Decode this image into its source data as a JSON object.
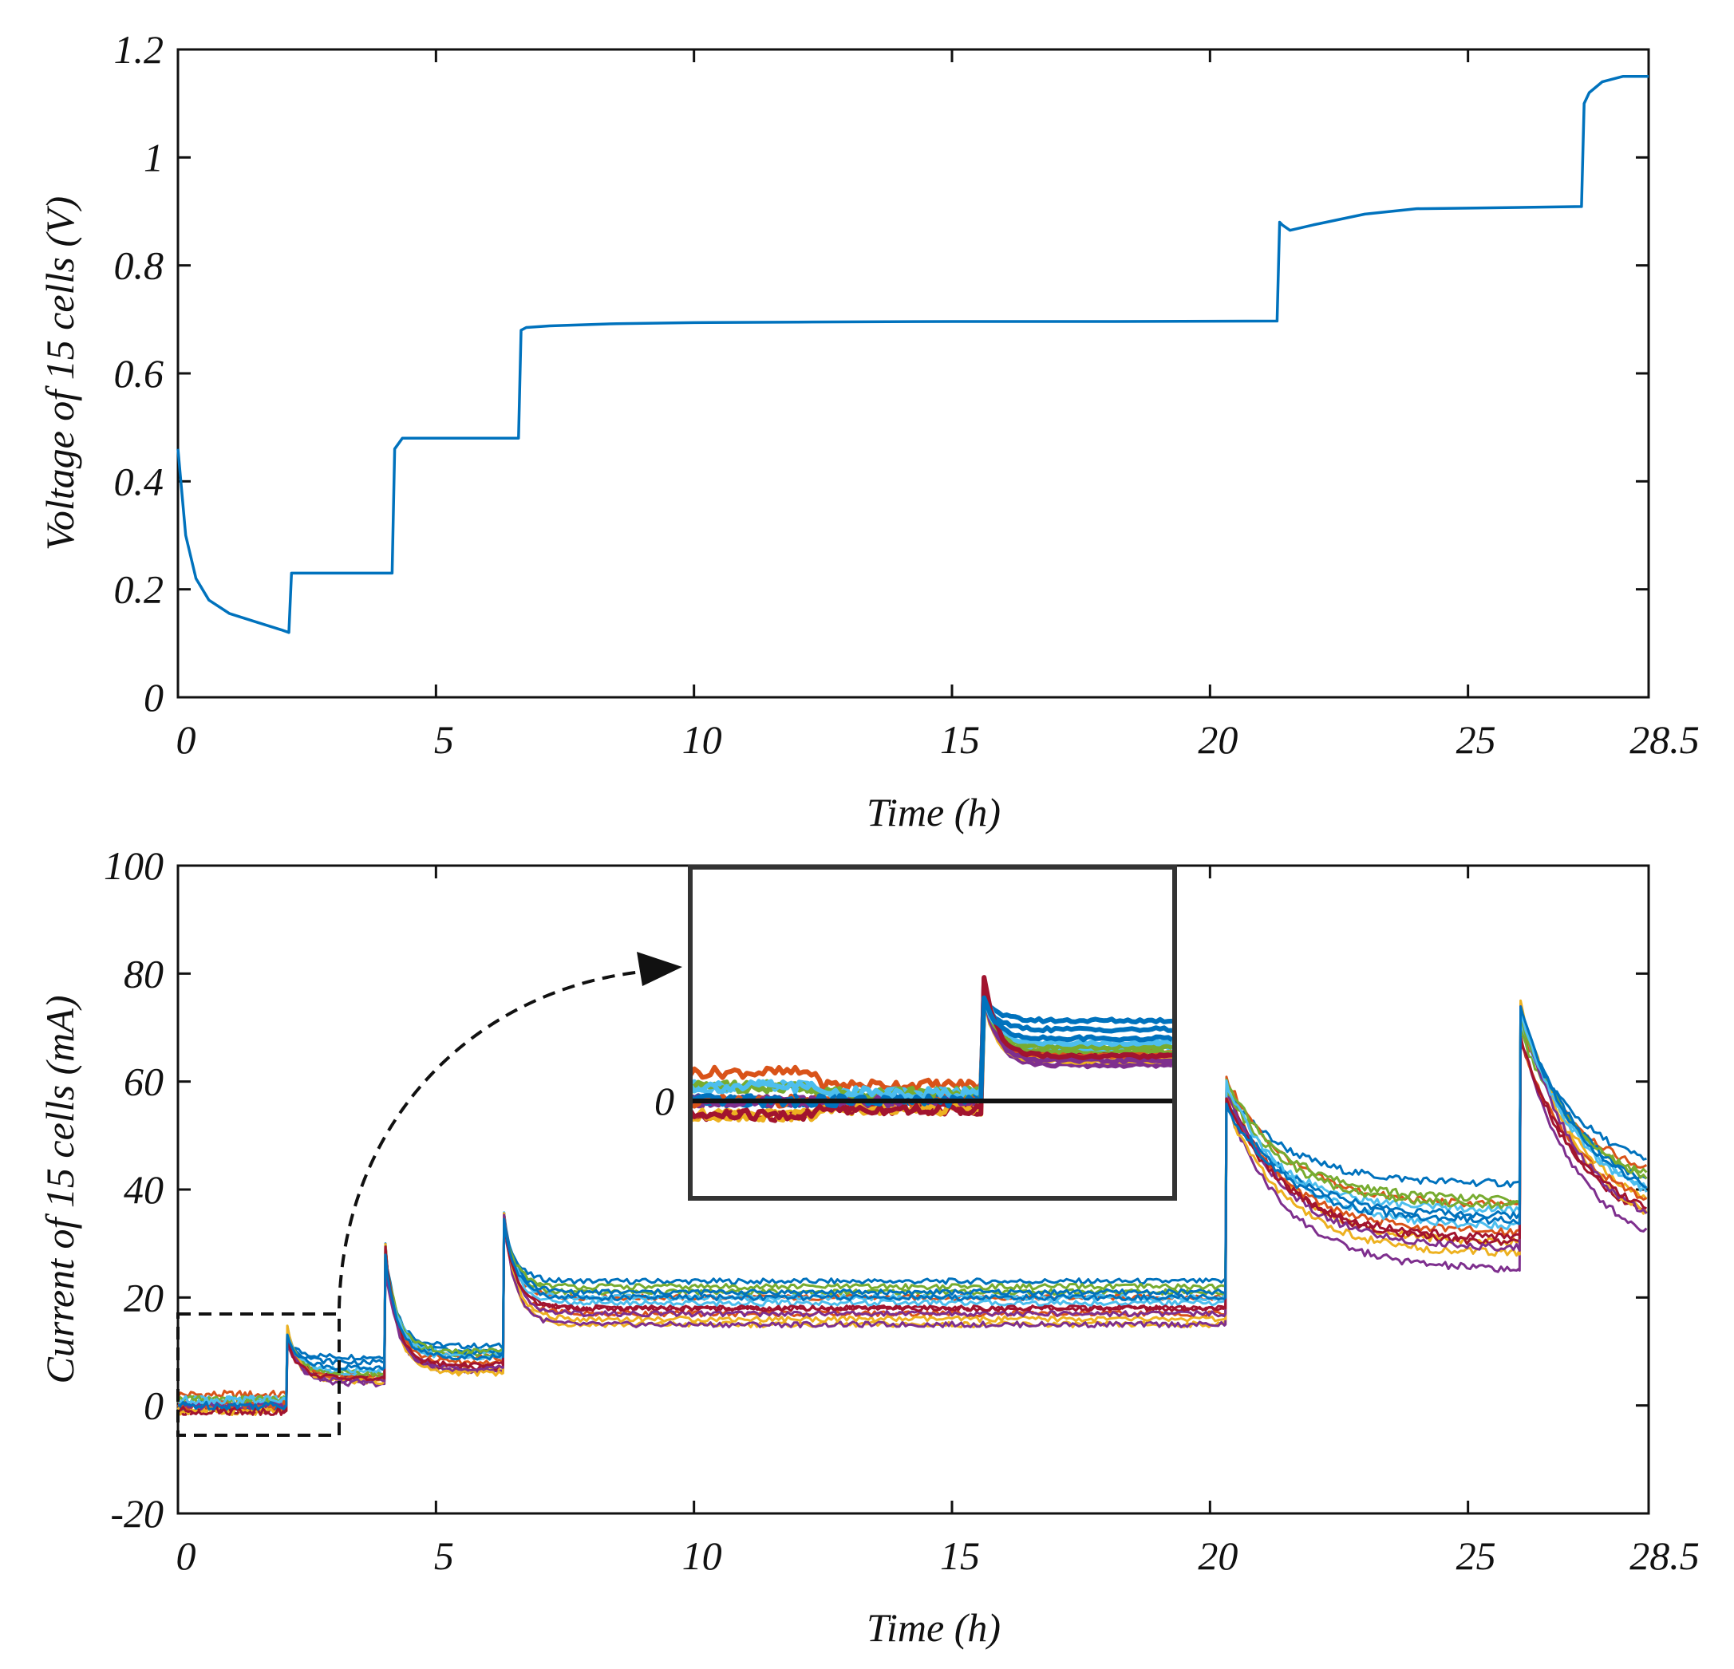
{
  "chart_data": [
    {
      "type": "line",
      "title": "",
      "xlabel": "Time (h)",
      "ylabel": "Voltage of 15 cells (V)",
      "xlim": [
        0,
        28.5
      ],
      "ylim": [
        0,
        1.2
      ],
      "xticks": [
        0,
        5,
        10,
        15,
        20,
        25,
        28.5
      ],
      "xtick_labels": [
        "0",
        "5",
        "10",
        "15",
        "20",
        "25",
        "28.5"
      ],
      "yticks": [
        0,
        0.2,
        0.4,
        0.6,
        0.8,
        1.0,
        1.2
      ],
      "ytick_labels": [
        "0",
        "0.2",
        "0.4",
        "0.6",
        "0.8",
        "1",
        "1.2"
      ],
      "grid": false,
      "series": [
        {
          "name": "Voltage",
          "color": "#0072BD",
          "x": [
            0,
            0.15,
            0.35,
            0.6,
            1.0,
            1.5,
            2.0,
            2.15,
            2.2,
            3.0,
            4.0,
            4.15,
            4.2,
            4.35,
            4.8,
            6.0,
            6.6,
            6.65,
            6.75,
            7.2,
            8.5,
            10,
            12,
            15,
            18,
            21.3,
            21.35,
            21.4,
            21.55,
            22,
            23,
            24,
            25,
            27.2,
            27.25,
            27.35,
            27.6,
            28,
            28.5
          ],
          "values": [
            0.46,
            0.3,
            0.22,
            0.18,
            0.155,
            0.14,
            0.125,
            0.12,
            0.23,
            0.23,
            0.23,
            0.23,
            0.46,
            0.48,
            0.48,
            0.48,
            0.48,
            0.68,
            0.685,
            0.688,
            0.692,
            0.694,
            0.695,
            0.696,
            0.696,
            0.697,
            0.88,
            0.875,
            0.865,
            0.875,
            0.895,
            0.905,
            0.906,
            0.909,
            1.1,
            1.12,
            1.14,
            1.15,
            1.15
          ]
        }
      ]
    },
    {
      "type": "line",
      "title": "",
      "xlabel": "Time (h)",
      "ylabel": "Current of 15 cells (mA)",
      "xlim": [
        0,
        28.5
      ],
      "ylim": [
        -20,
        100
      ],
      "xticks": [
        0,
        5,
        10,
        15,
        20,
        25,
        28.5
      ],
      "xtick_labels": [
        "0",
        "5",
        "10",
        "15",
        "20",
        "25",
        "28.5"
      ],
      "yticks": [
        -20,
        0,
        20,
        40,
        60,
        80,
        100
      ],
      "ytick_labels": [
        "-20",
        "0",
        "20",
        "40",
        "60",
        "80",
        "100"
      ],
      "grid": false,
      "step_times": [
        2.1,
        4.0,
        6.3,
        20.3,
        26.0
      ],
      "series": [
        {
          "name": "cell 1",
          "color": "#0072BD",
          "values": [
            0,
            9,
            11,
            23,
            41,
            42
          ]
        },
        {
          "name": "cell 2",
          "color": "#D95319",
          "values": [
            2,
            5.5,
            9,
            20,
            37,
            40
          ]
        },
        {
          "name": "cell 3",
          "color": "#EDB120",
          "values": [
            -1,
            4.5,
            6.5,
            15,
            30,
            33
          ]
        },
        {
          "name": "cell 4",
          "color": "#7E2F8E",
          "values": [
            0,
            4,
            6.5,
            15,
            25,
            27
          ]
        },
        {
          "name": "cell 5",
          "color": "#77AC30",
          "values": [
            1,
            5.5,
            9.5,
            21,
            38,
            39
          ]
        },
        {
          "name": "cell 6",
          "color": "#4DBEEE",
          "values": [
            1,
            6,
            10,
            20,
            36,
            36
          ]
        },
        {
          "name": "cell 7",
          "color": "#A2142F",
          "values": [
            -1,
            5,
            7,
            18,
            30,
            31
          ]
        },
        {
          "name": "cell 8",
          "color": "#0072BD",
          "values": [
            0,
            8,
            10,
            21,
            35,
            37
          ]
        },
        {
          "name": "cell 9",
          "color": "#D95319",
          "values": [
            0,
            5,
            8,
            17,
            32,
            34
          ]
        },
        {
          "name": "cell 10",
          "color": "#EDB120",
          "values": [
            -1,
            4.5,
            6,
            16,
            28,
            30
          ]
        },
        {
          "name": "cell 11",
          "color": "#7E2F8E",
          "values": [
            0,
            4.5,
            7,
            17,
            29,
            30
          ]
        },
        {
          "name": "cell 12",
          "color": "#77AC30",
          "values": [
            1,
            6,
            10,
            22,
            37,
            38
          ]
        },
        {
          "name": "cell 13",
          "color": "#4DBEEE",
          "values": [
            1,
            6.5,
            9,
            19,
            33,
            35
          ]
        },
        {
          "name": "cell 14",
          "color": "#A2142F",
          "values": [
            -1,
            5,
            7.5,
            18,
            31,
            32
          ]
        },
        {
          "name": "cell 15",
          "color": "#0072BD",
          "values": [
            0,
            7,
            9,
            20,
            34,
            36
          ]
        }
      ],
      "inset": {
        "description": "Zoom of 0–3 h region",
        "ytick_labels": [
          "0"
        ]
      }
    }
  ]
}
